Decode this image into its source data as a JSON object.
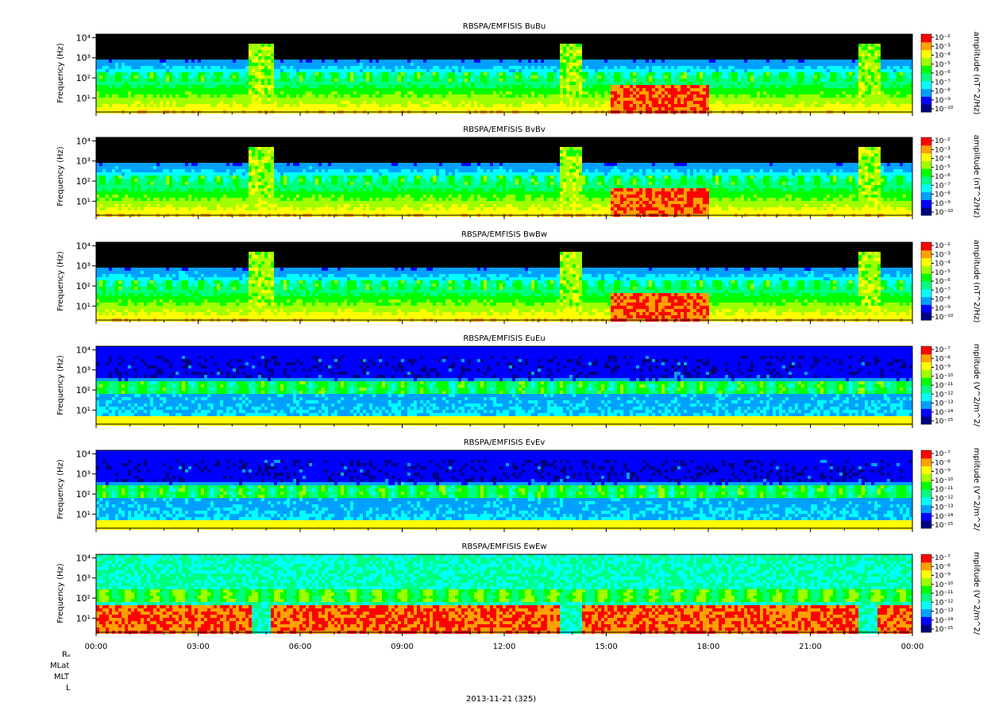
{
  "chart_data": {
    "type": "heatmap",
    "date_label": "2013-11-21 (325)",
    "x_tick_labels": [
      "00:00",
      "03:00",
      "06:00",
      "09:00",
      "12:00",
      "15:00",
      "18:00",
      "21:00",
      "00:00"
    ],
    "x_range_hours": [
      0,
      24
    ],
    "ephemeris_labels": [
      "Rₑ",
      "MLat",
      "MLT",
      "L"
    ],
    "panels": [
      {
        "title": "RBSPA/EMFISIS  BuBu",
        "ylabel": "Frequency (Hz)",
        "yscale": "log",
        "ylim": [
          2,
          15000
        ],
        "y_tick_labels": [
          "10¹",
          "10²",
          "10³",
          "10⁴"
        ],
        "colorbar_label": "amplitude (nT^2/Hz)",
        "colorbar_ticks": [
          "10⁻²",
          "10⁻³",
          "10⁻⁴",
          "10⁻⁵",
          "10⁻⁶",
          "10⁻⁷",
          "10⁻⁸",
          "10⁻⁹",
          "10⁻¹⁰"
        ]
      },
      {
        "title": "RBSPA/EMFISIS  BvBv",
        "ylabel": "Frequency (Hz)",
        "yscale": "log",
        "ylim": [
          2,
          15000
        ],
        "y_tick_labels": [
          "10¹",
          "10²",
          "10³",
          "10⁴"
        ],
        "colorbar_label": "amplitude (nT^2/Hz)",
        "colorbar_ticks": [
          "10⁻²",
          "10⁻³",
          "10⁻⁴",
          "10⁻⁵",
          "10⁻⁶",
          "10⁻⁷",
          "10⁻⁸",
          "10⁻⁹",
          "10⁻¹⁰"
        ]
      },
      {
        "title": "RBSPA/EMFISIS  BwBw",
        "ylabel": "Frequency (Hz)",
        "yscale": "log",
        "ylim": [
          2,
          15000
        ],
        "y_tick_labels": [
          "10¹",
          "10²",
          "10³",
          "10⁴"
        ],
        "colorbar_label": "amplitude (nT^2/Hz)",
        "colorbar_ticks": [
          "10⁻²",
          "10⁻³",
          "10⁻⁴",
          "10⁻⁵",
          "10⁻⁶",
          "10⁻⁷",
          "10⁻⁸",
          "10⁻⁹",
          "10⁻¹⁰"
        ]
      },
      {
        "title": "RBSPA/EMFISIS  EuEu",
        "ylabel": "Frequency (Hz)",
        "yscale": "log",
        "ylim": [
          2,
          15000
        ],
        "y_tick_labels": [
          "10¹",
          "10²",
          "10³",
          "10⁴"
        ],
        "colorbar_label": "mplitude (V^2/m^2/",
        "colorbar_ticks": [
          "10⁻⁷",
          "10⁻⁸",
          "10⁻⁹",
          "10⁻¹⁰",
          "10⁻¹¹",
          "10⁻¹²",
          "10⁻¹³",
          "10⁻¹⁴",
          "10⁻¹⁵"
        ]
      },
      {
        "title": "RBSPA/EMFISIS  EvEv",
        "ylabel": "Frequency (Hz)",
        "yscale": "log",
        "ylim": [
          2,
          15000
        ],
        "y_tick_labels": [
          "10¹",
          "10²",
          "10³",
          "10⁴"
        ],
        "colorbar_label": "mplitude (V^2/m^2/",
        "colorbar_ticks": [
          "10⁻⁷",
          "10⁻⁸",
          "10⁻⁹",
          "10⁻¹⁰",
          "10⁻¹¹",
          "10⁻¹²",
          "10⁻¹³",
          "10⁻¹⁴",
          "10⁻¹⁵"
        ]
      },
      {
        "title": "RBSPA/EMFISIS  EwEw",
        "ylabel": "Frequency (Hz)",
        "yscale": "log",
        "ylim": [
          2,
          15000
        ],
        "y_tick_labels": [
          "10¹",
          "10²",
          "10³",
          "10⁴"
        ],
        "colorbar_label": "mplitude (V^2/m^2/",
        "colorbar_ticks": [
          "10⁻⁷",
          "10⁻⁸",
          "10⁻⁹",
          "10⁻¹⁰",
          "10⁻¹¹",
          "10⁻¹²",
          "10⁻¹³",
          "10⁻¹⁴",
          "10⁻¹⁵"
        ]
      }
    ],
    "colormap": [
      "#000080",
      "#0000ff",
      "#00a0ff",
      "#00ffff",
      "#00ff80",
      "#00ff00",
      "#a0ff00",
      "#ffff00",
      "#ffa000",
      "#ff0000"
    ]
  }
}
